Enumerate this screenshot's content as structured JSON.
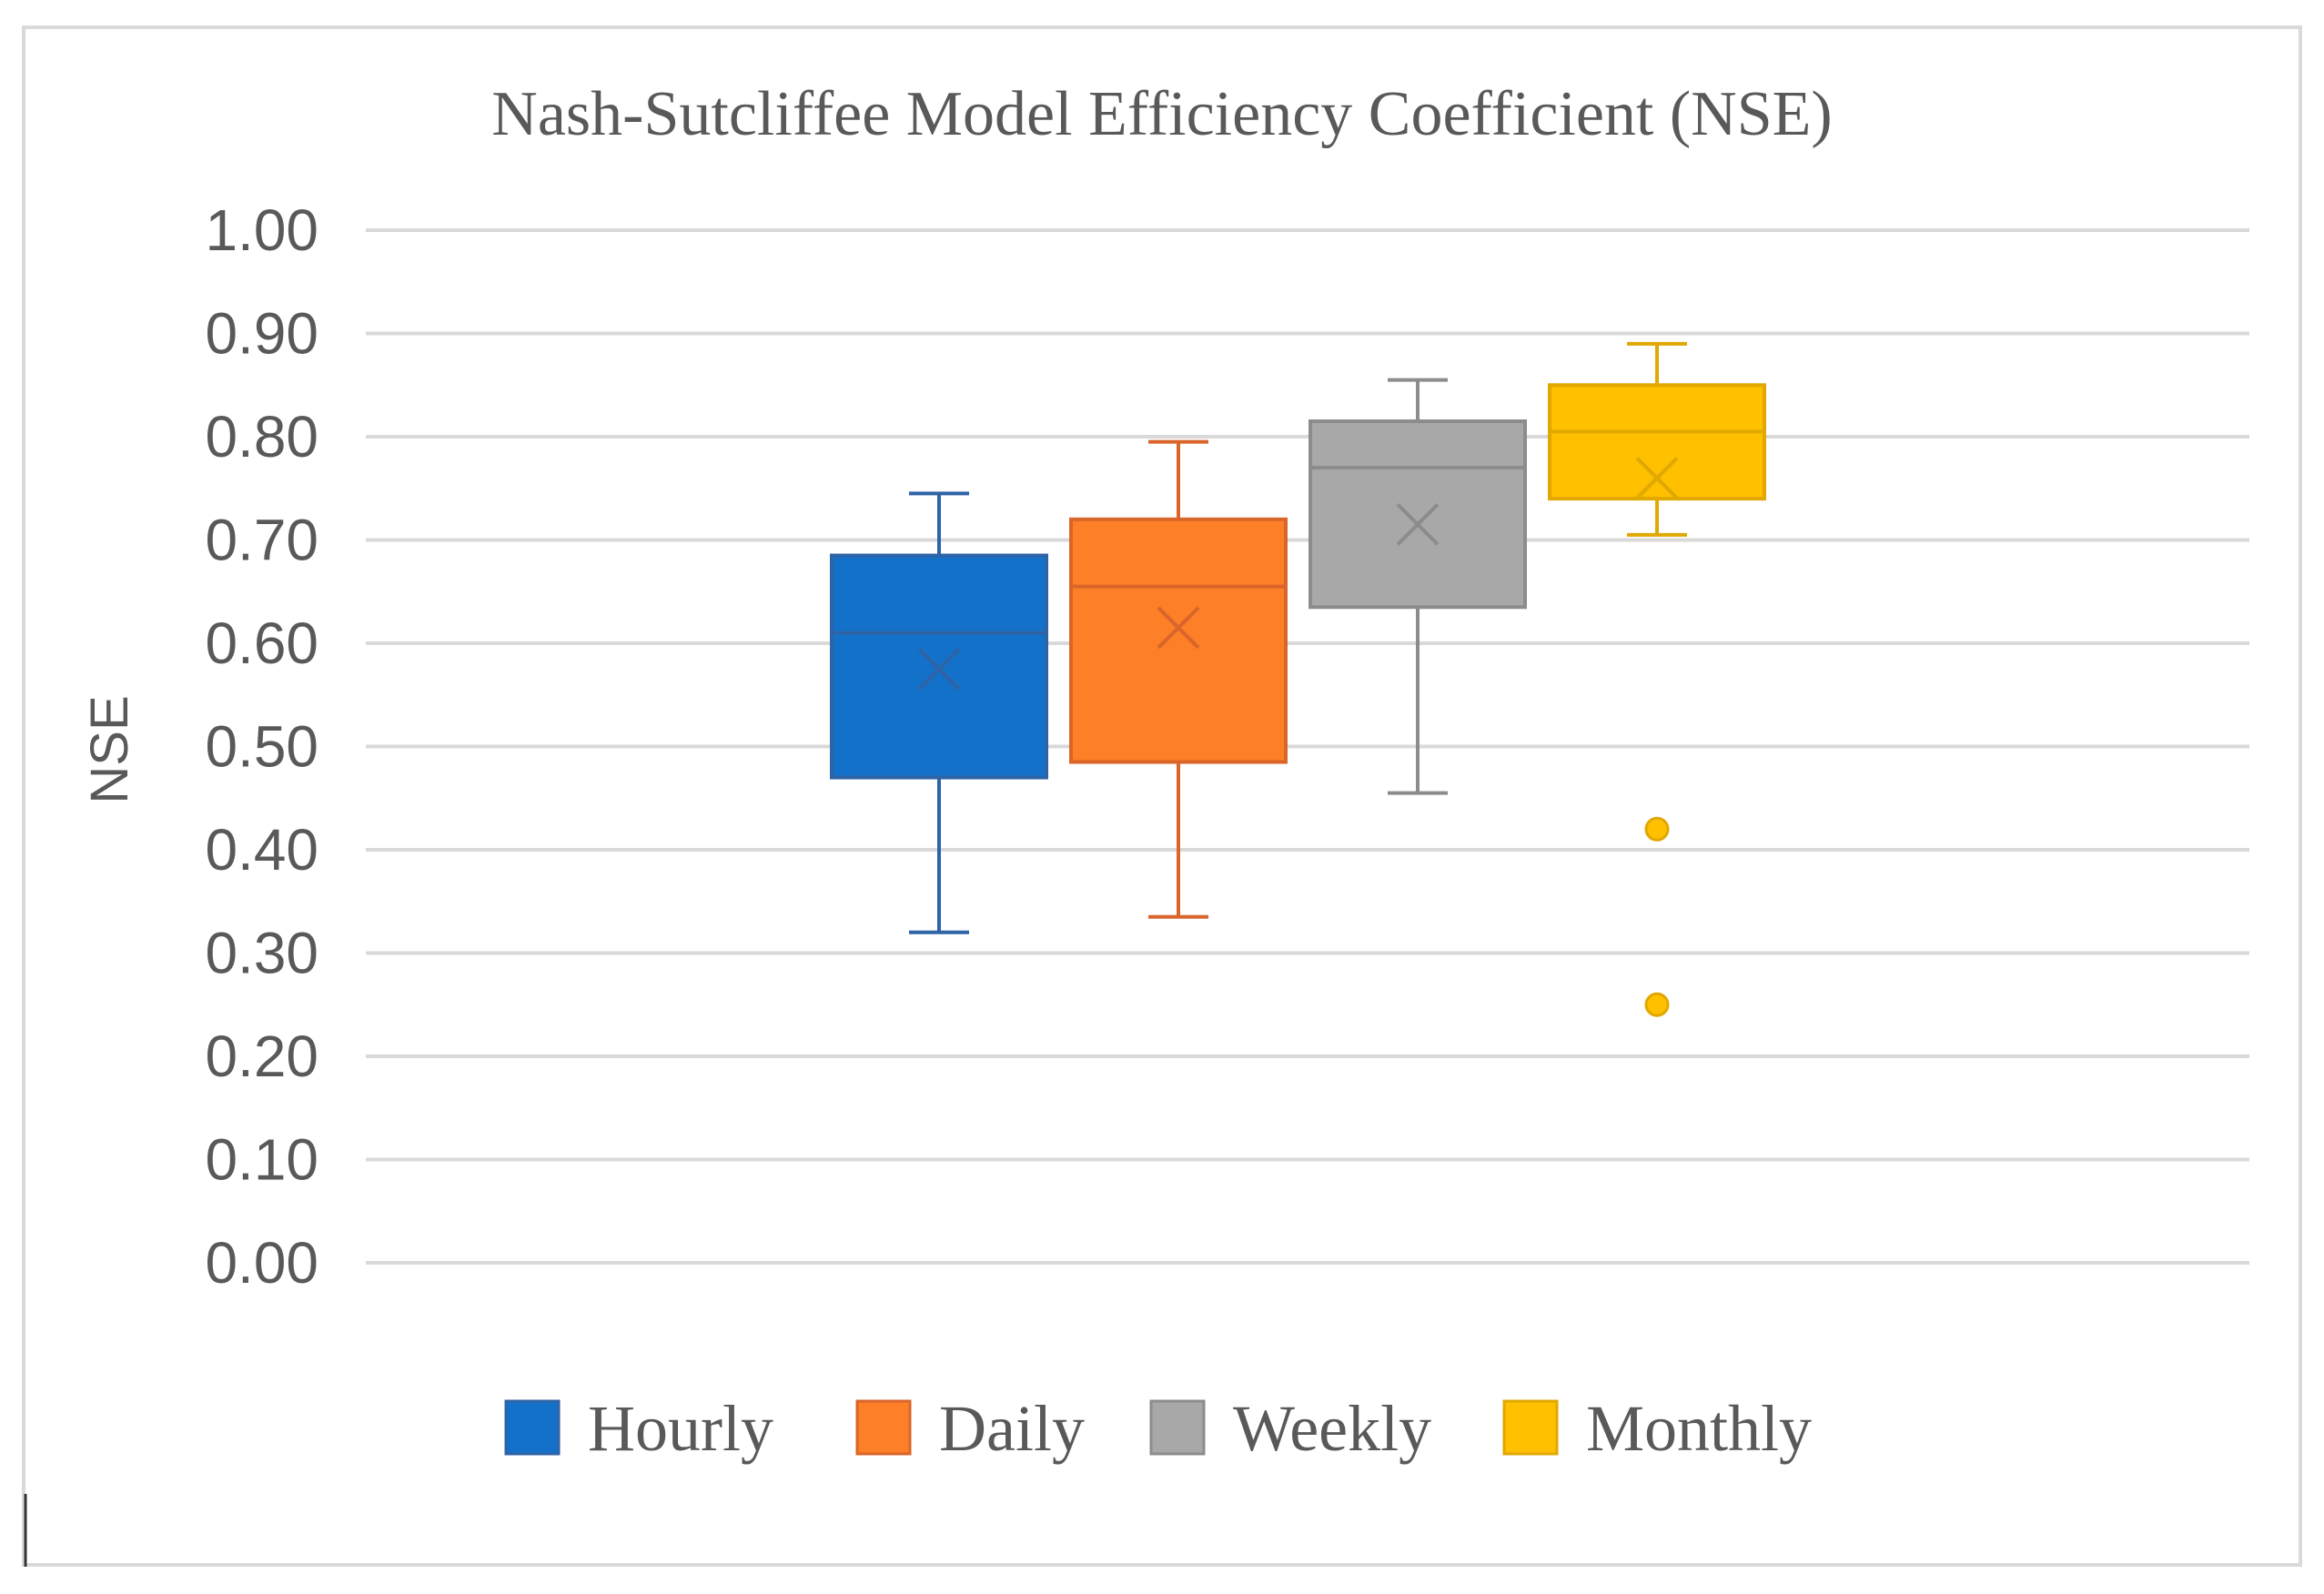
{
  "chart_data": {
    "type": "boxplot",
    "title": "Nash-Sutcliffee Model Efficiency Coefficient (NSE)",
    "xlabel": "",
    "ylabel": "NSE",
    "ylim": [
      0,
      1
    ],
    "ytick_step": 0.1,
    "ytick_labels": [
      "0.00",
      "0.10",
      "0.20",
      "0.30",
      "0.40",
      "0.50",
      "0.60",
      "0.70",
      "0.80",
      "0.90",
      "1.00"
    ],
    "grid": true,
    "legend_position": "bottom",
    "series": [
      {
        "name": "Hourly",
        "color": "#1471C9",
        "stroke": "#2E63A6",
        "min": 0.32,
        "q1": 0.47,
        "median": 0.61,
        "q3": 0.685,
        "max": 0.745,
        "mean": 0.575,
        "outliers": []
      },
      {
        "name": "Daily",
        "color": "#FD7F27",
        "stroke": "#D9652A",
        "min": 0.335,
        "q1": 0.485,
        "median": 0.655,
        "q3": 0.72,
        "max": 0.795,
        "mean": 0.615,
        "outliers": []
      },
      {
        "name": "Weekly",
        "color": "#A8A8A8",
        "stroke": "#8C8C8C",
        "min": 0.455,
        "q1": 0.635,
        "median": 0.77,
        "q3": 0.815,
        "max": 0.855,
        "mean": 0.715,
        "outliers": []
      },
      {
        "name": "Monthly",
        "color": "#FFC000",
        "stroke": "#E0A800",
        "min": 0.705,
        "q1": 0.74,
        "median": 0.805,
        "q3": 0.85,
        "max": 0.89,
        "mean": 0.76,
        "outliers": [
          0.42,
          0.25
        ]
      }
    ]
  }
}
